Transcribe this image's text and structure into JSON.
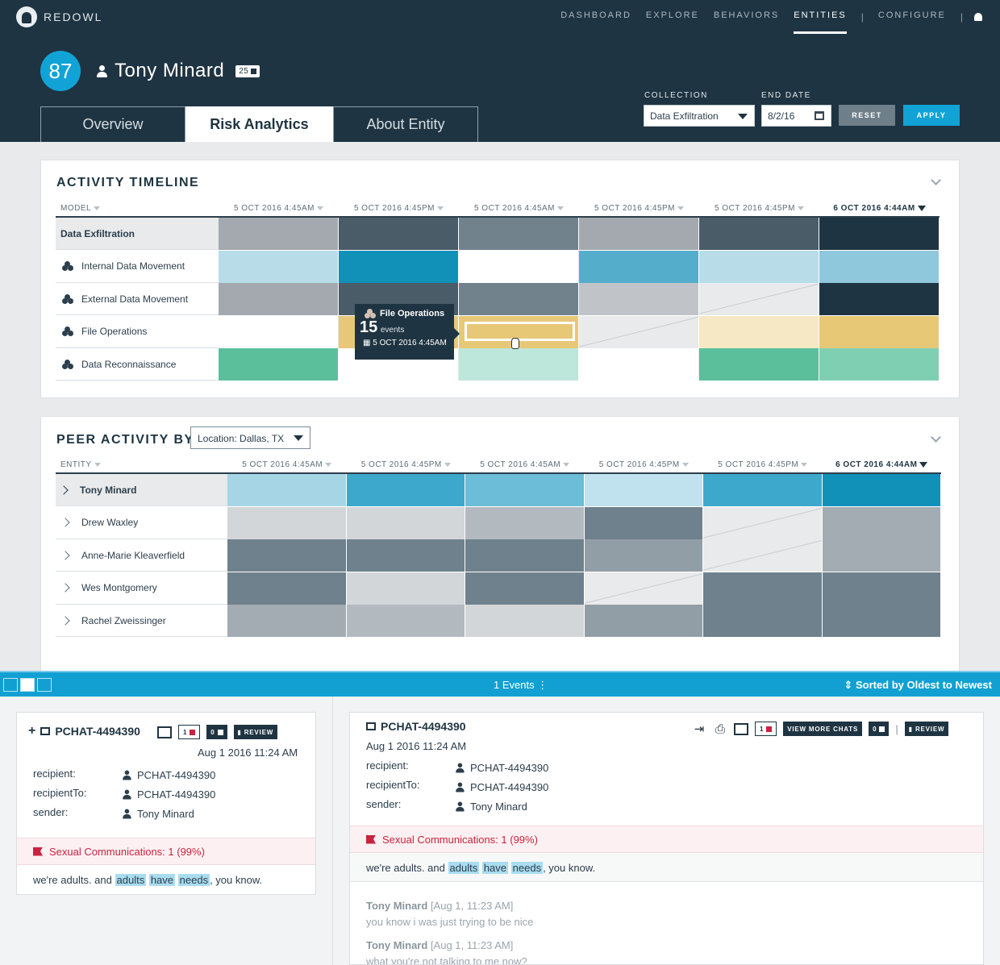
{
  "brand": {
    "name": "REDOWL"
  },
  "nav": {
    "items": [
      "DASHBOARD",
      "EXPLORE",
      "BEHAVIORS",
      "ENTITIES"
    ],
    "configure": "CONFIGURE",
    "separator": "|",
    "active": "ENTITIES"
  },
  "entity": {
    "score": "87",
    "name": "Tony Minard",
    "badge": "25"
  },
  "tabs": [
    "Overview",
    "Risk Analytics",
    "About Entity"
  ],
  "filters": {
    "collection_label": "COLLECTION",
    "collection_value": "Data Exfiltration",
    "end_date_label": "END DATE",
    "end_date_value": "8/2/16",
    "reset": "RESET",
    "apply": "APPLY"
  },
  "activity": {
    "title": "ACTIVITY TIMELINE",
    "model_header": "MODEL",
    "columns": [
      "5 OCT 2016 4:45AM",
      "5 OCT 2016 4:45PM",
      "5 OCT 2016 4:45AM",
      "5 OCT 2016 4:45PM",
      "5 OCT 2016 4:45PM",
      "6 OCT 2016 4:44AM"
    ],
    "rows": [
      {
        "label": "Data Exfiltration",
        "head": true,
        "colors": [
          "#a3a9ae",
          "#4a5c68",
          "#71828c",
          "#a3a9ae",
          "#4a5c68",
          "#1f3442"
        ]
      },
      {
        "label": "Internal Data Movement",
        "colors": [
          "#b8dde9",
          "#1190b8",
          "#ffffff",
          "#55adcc",
          "#b8dde9",
          "#8fc8dd"
        ]
      },
      {
        "label": "External Data Movement",
        "colors": [
          "#a3a9ae",
          "#4a5c68",
          "#71828c",
          "#c0c4c8",
          "#e9eaeb",
          "#1f3442"
        ]
      },
      {
        "label": "File Operations",
        "colors": [
          "#ffffff",
          "#e7c877",
          "#e7c877",
          "#e9eaeb",
          "#f6e8c4",
          "#e7c877"
        ]
      },
      {
        "label": "Data Reconnaissance",
        "colors": [
          "#5bbf9c",
          "#ffffff",
          "#bde7da",
          "#ffffff",
          "#5bbf9c",
          "#7fcfb2"
        ]
      }
    ],
    "tooltip": {
      "title": "File Operations",
      "count": "15",
      "unit": "events",
      "date": "5 OCT 2016 4:45AM"
    }
  },
  "peer": {
    "title": "PEER ACTIVITY BY",
    "location": "Location: Dallas, TX",
    "entity_header": "ENTITY",
    "columns": [
      "5 OCT 2016 4:45AM",
      "5 OCT 2016 4:45PM",
      "5 OCT 2016 4:45AM",
      "5 OCT 2016 4:45PM",
      "5 OCT 2016 4:45PM",
      "6 OCT 2016 4:44AM"
    ],
    "rows": [
      {
        "label": "Tony Minard",
        "head": true,
        "colors": [
          "#a6d6e6",
          "#3ea8cc",
          "#6cbdd8",
          "#bfe2ee",
          "#3ea8cc",
          "#1190b8"
        ]
      },
      {
        "label": "Drew Waxley",
        "colors": [
          "#d3d6d9",
          "#d3d6d9",
          "#b3babf",
          "#6f818c",
          "#e9eaeb",
          "#a3acb2"
        ]
      },
      {
        "label": "Anne-Marie Kleaverfield",
        "colors": [
          "#6f818c",
          "#6f818c",
          "#6f818c",
          "#929ea6",
          "#e9eaeb",
          "#a3acb2"
        ]
      },
      {
        "label": "Wes Montgomery",
        "colors": [
          "#6f818c",
          "#d3d6d9",
          "#6f818c",
          "#e9eaeb",
          "#6f818c",
          "#6f818c"
        ]
      },
      {
        "label": "Rachel Zweissinger",
        "colors": [
          "#a3acb2",
          "#b3babf",
          "#d3d6d9",
          "#929ea6",
          "#6f818c",
          "#6f818c"
        ]
      }
    ]
  },
  "events_bar": {
    "count": "1 Events",
    "sort": "Sorted by Oldest to Newest"
  },
  "left_card": {
    "id": "PCHAT-4494390",
    "flag_count": "1",
    "comment_count": "0",
    "review": "REVIEW",
    "date": "Aug 1 2016  11:24 AM",
    "fields": [
      {
        "label": "recipient:",
        "value": "PCHAT-4494390"
      },
      {
        "label": "recipientTo:",
        "value": "PCHAT-4494390"
      },
      {
        "label": "sender:",
        "value": "Tony Minard"
      }
    ],
    "flag_text": "Sexual Communications: 1 (99%)",
    "message": {
      "pre": "we're adults. and ",
      "w1": "adults",
      "w2": "have",
      "w3": "needs",
      "post": ", you know."
    }
  },
  "right_card": {
    "id": "PCHAT-4494390",
    "date": "Aug 1 2016 11:24 AM",
    "flag_count": "1",
    "comment_count": "0",
    "view_more": "VIEW MORE CHATS",
    "review": "REVIEW",
    "fields": [
      {
        "label": "recipient:",
        "value": "PCHAT-4494390"
      },
      {
        "label": "recipientTo:",
        "value": "PCHAT-4494390"
      },
      {
        "label": "sender:",
        "value": "Tony Minard"
      }
    ],
    "flag_text": "Sexual Communications: 1 (99%)",
    "message": {
      "pre": "we're adults. and ",
      "w1": "adults",
      "w2": "have",
      "w3": "needs",
      "post": ", you know."
    },
    "history": [
      {
        "name": "Tony Minard",
        "time": "[Aug 1, 11:23 AM]",
        "text": "you know i was just trying to be nice"
      },
      {
        "name": "Tony Minard",
        "time": "[Aug 1, 11:23 AM]",
        "text": "what you're not talking to me now?"
      }
    ]
  }
}
